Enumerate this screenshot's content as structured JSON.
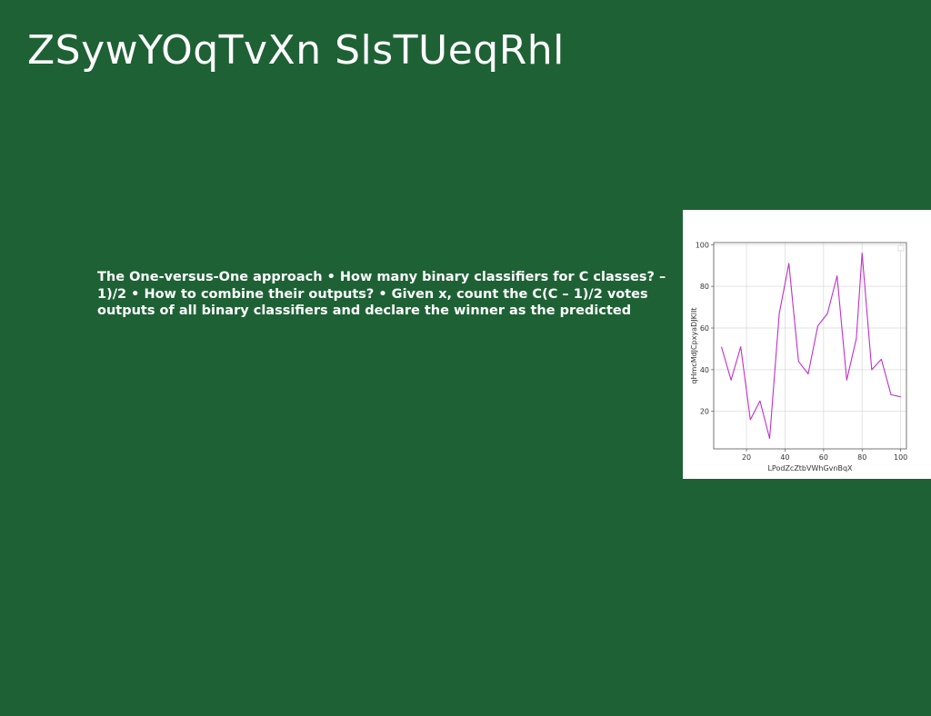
{
  "slide": {
    "title": "ZSywYOqTvXn SlsTUeqRhl",
    "body": "The One-versus-One approach • How many binary classifiers for C classes? – 1)/2 • How to combine their outputs? • Given x, count the C(C – 1)/2 votes outputs of all binary classifiers and declare the winner as the predicted"
  },
  "colors": {
    "background": "#1e6135",
    "line": "#c030c8",
    "grid": "#d8d8d8"
  },
  "chart_data": {
    "type": "line",
    "xlabel": "LPodZcZtbVWhGvnBqX",
    "ylabel": "qHmcMdJCpxyaDJKlIt",
    "xlim": [
      3,
      103
    ],
    "ylim": [
      2,
      101
    ],
    "xticks": [
      20,
      40,
      60,
      80,
      100
    ],
    "yticks": [
      20,
      40,
      60,
      80,
      100
    ],
    "grid": true,
    "series": [
      {
        "x": [
          7,
          12,
          17,
          22,
          27,
          32,
          37,
          42,
          47,
          52,
          57,
          62,
          67,
          72,
          77,
          80,
          85,
          90,
          95,
          100
        ],
        "y": [
          51,
          35,
          51,
          16,
          25,
          7,
          67,
          91,
          44,
          38,
          61,
          67,
          85,
          35,
          55,
          96,
          40,
          45,
          28,
          27
        ]
      }
    ]
  }
}
